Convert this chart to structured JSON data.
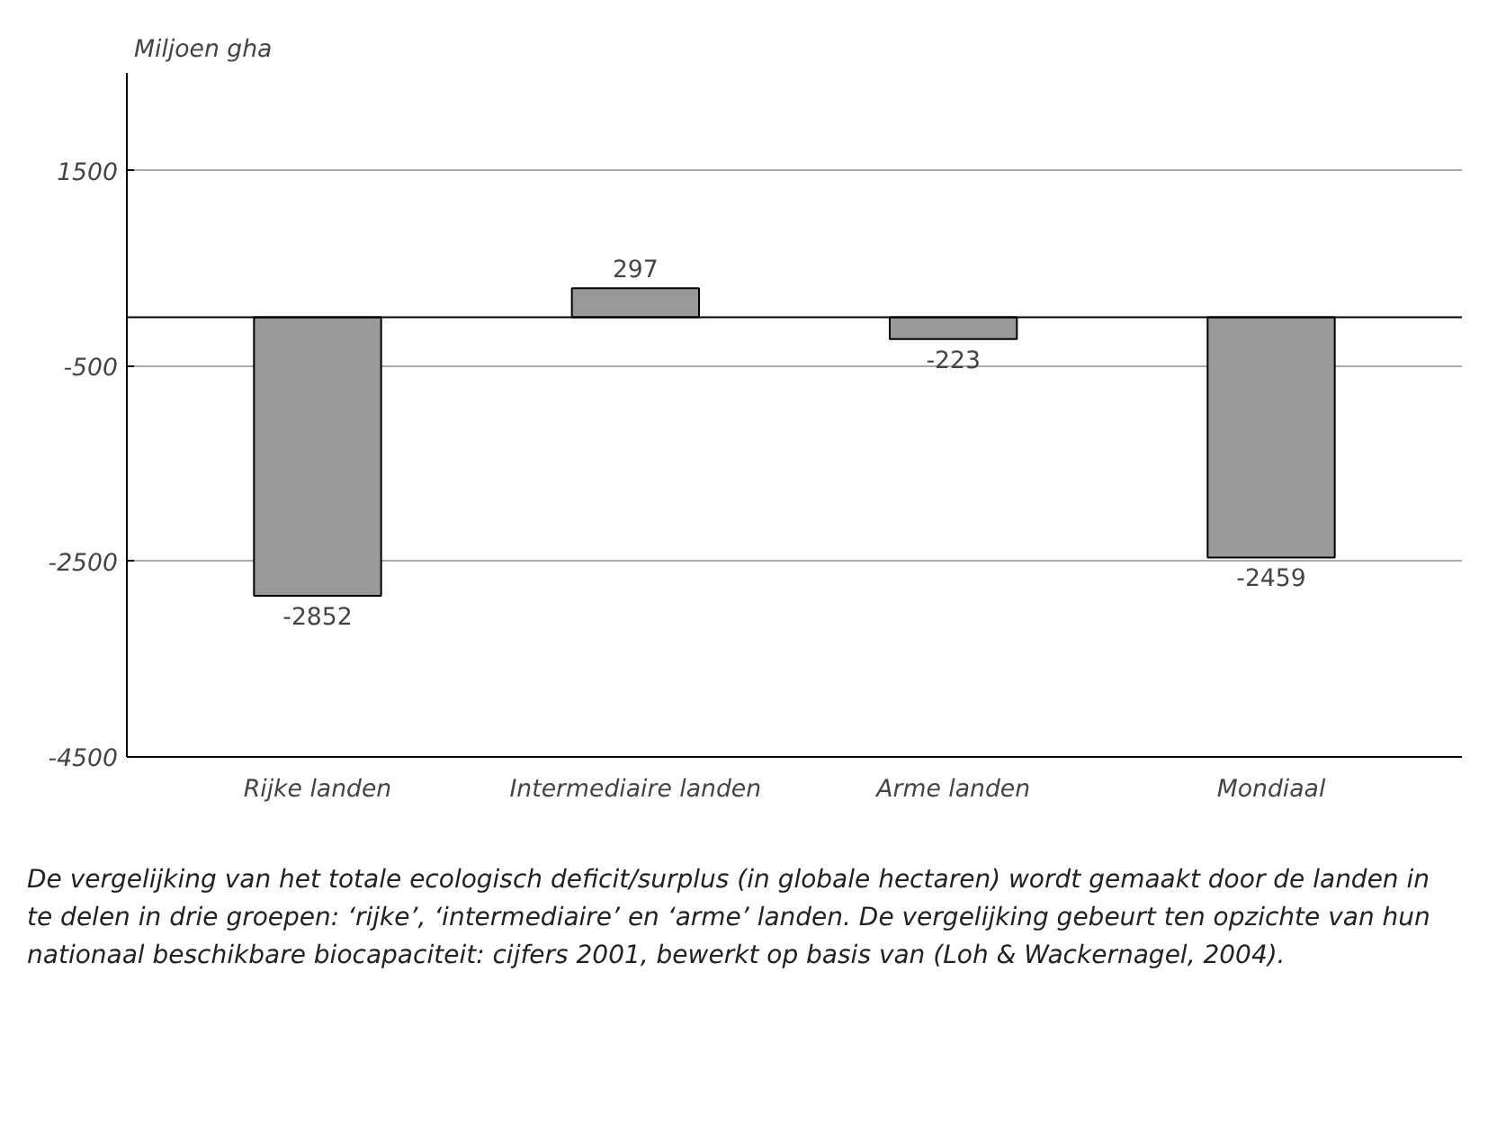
{
  "chart_data": {
    "type": "bar",
    "ylabel": "Miljoen gha",
    "categories": [
      "Rijke landen",
      "Intermediaire landen",
      "Arme landen",
      "Mondiaal"
    ],
    "values": [
      -2852,
      297,
      -223,
      -2459
    ],
    "color": "#999999",
    "data_labels": true,
    "ylim": [
      -4500,
      2500
    ],
    "yticks": [
      -4500,
      -2500,
      -500,
      1500
    ],
    "grid": "y",
    "ref_lines": [
      {
        "axis": "y",
        "value": 0,
        "color": "#000000"
      }
    ],
    "annotations": [
      "De vergelijking van het totale ecologisch deficit/surplus (in globale hectaren) wordt gemaakt door de landen in te delen in drie groepen: ‘rijke’, ‘intermediaire’ en ‘arme’ landen. De vergelijking gebeurt ten opzichte van hun nationaal beschikbare biocapaciteit: cijfers 2001, bewerkt op basis van (Loh & Wackernagel, 2004)."
    ]
  }
}
